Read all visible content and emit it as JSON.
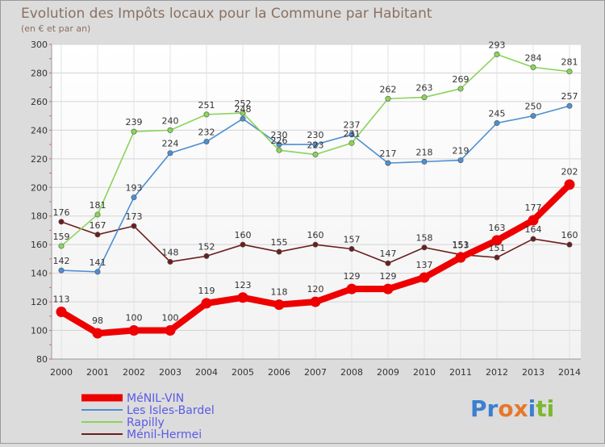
{
  "title": "Evolution des Impôts locaux pour la Commune par Habitant",
  "subtitle": "(en € et par an)",
  "brand": {
    "logo_text": "Proxiti",
    "letters": [
      "P",
      "r",
      "o",
      "x",
      "i",
      "t",
      "i"
    ],
    "letter_colors": [
      "#3a7fd0",
      "#3a7fd0",
      "#e5782a",
      "#e5782a",
      "#3a7fd0",
      "#7cb82f",
      "#7cb82f"
    ]
  },
  "chart_data": {
    "type": "line",
    "x": [
      "2000",
      "2001",
      "2002",
      "2003",
      "2004",
      "2005",
      "2006",
      "2007",
      "2008",
      "2009",
      "2010",
      "2011",
      "2012",
      "2013",
      "2014"
    ],
    "ylim": [
      80,
      300
    ],
    "yticks": [
      80,
      100,
      120,
      140,
      160,
      180,
      200,
      220,
      240,
      260,
      280,
      300
    ],
    "grid": true,
    "legend_position": "bottom-left",
    "series": [
      {
        "name": "Ménil-Hermei",
        "color": "#6b1e1e",
        "width": "thin",
        "values": [
          176,
          167,
          173,
          148,
          152,
          160,
          155,
          160,
          157,
          147,
          158,
          153,
          151,
          164,
          160
        ]
      },
      {
        "name": "Les Isles-Bardel",
        "color": "#4d8fd1",
        "width": "thin",
        "values": [
          142,
          141,
          193,
          224,
          232,
          248,
          230,
          230,
          237,
          217,
          218,
          219,
          245,
          250,
          257
        ]
      },
      {
        "name": "Rapilly",
        "color": "#8ad45a",
        "width": "thin",
        "values": [
          159,
          181,
          239,
          240,
          251,
          252,
          226,
          223,
          231,
          262,
          263,
          269,
          293,
          284,
          281
        ]
      },
      {
        "name": "MéNIL-VIN",
        "color": "#ee0000",
        "width": "thick",
        "values": [
          113,
          98,
          100,
          100,
          119,
          123,
          118,
          120,
          129,
          129,
          137,
          151,
          163,
          177,
          202
        ]
      }
    ],
    "legend_order": [
      "MéNIL-VIN",
      "Les Isles-Bardel",
      "Rapilly",
      "Ménil-Hermei"
    ]
  }
}
